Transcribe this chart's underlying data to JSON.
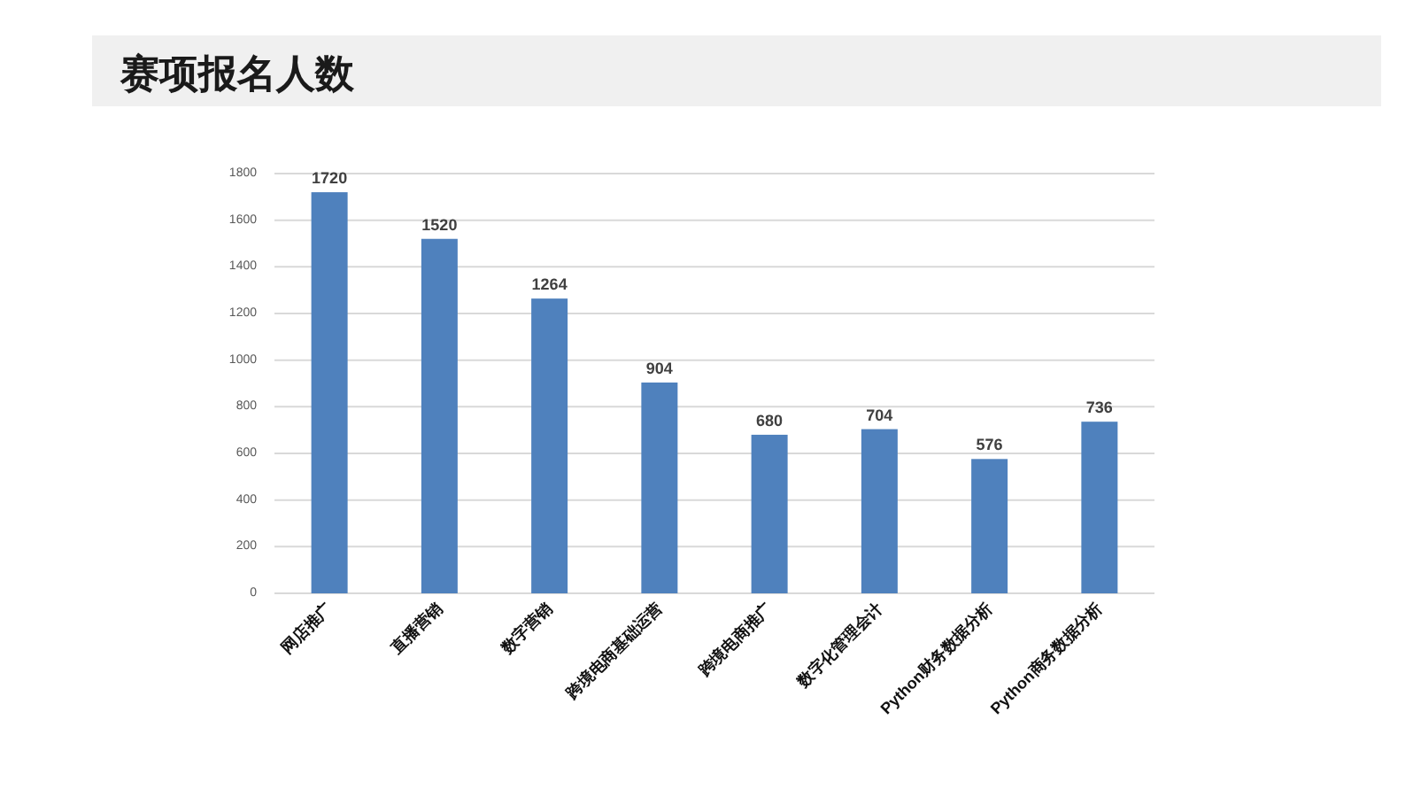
{
  "chart_data": {
    "type": "bar",
    "title": "赛项报名人数",
    "categories": [
      "网店推广",
      "直播营销",
      "数字营销",
      "跨境电商基础运营",
      "跨境电商推广",
      "数字化管理会计",
      "Python财务数据分析",
      "Python商务数据分析"
    ],
    "values": [
      1720,
      1520,
      1264,
      904,
      680,
      704,
      576,
      736
    ],
    "color": "#4f81bd",
    "ylim": [
      0,
      1800
    ],
    "yticks": [
      0,
      200,
      400,
      600,
      800,
      1000,
      1200,
      1400,
      1600,
      1800
    ],
    "grid": "y",
    "data_labels": true
  }
}
